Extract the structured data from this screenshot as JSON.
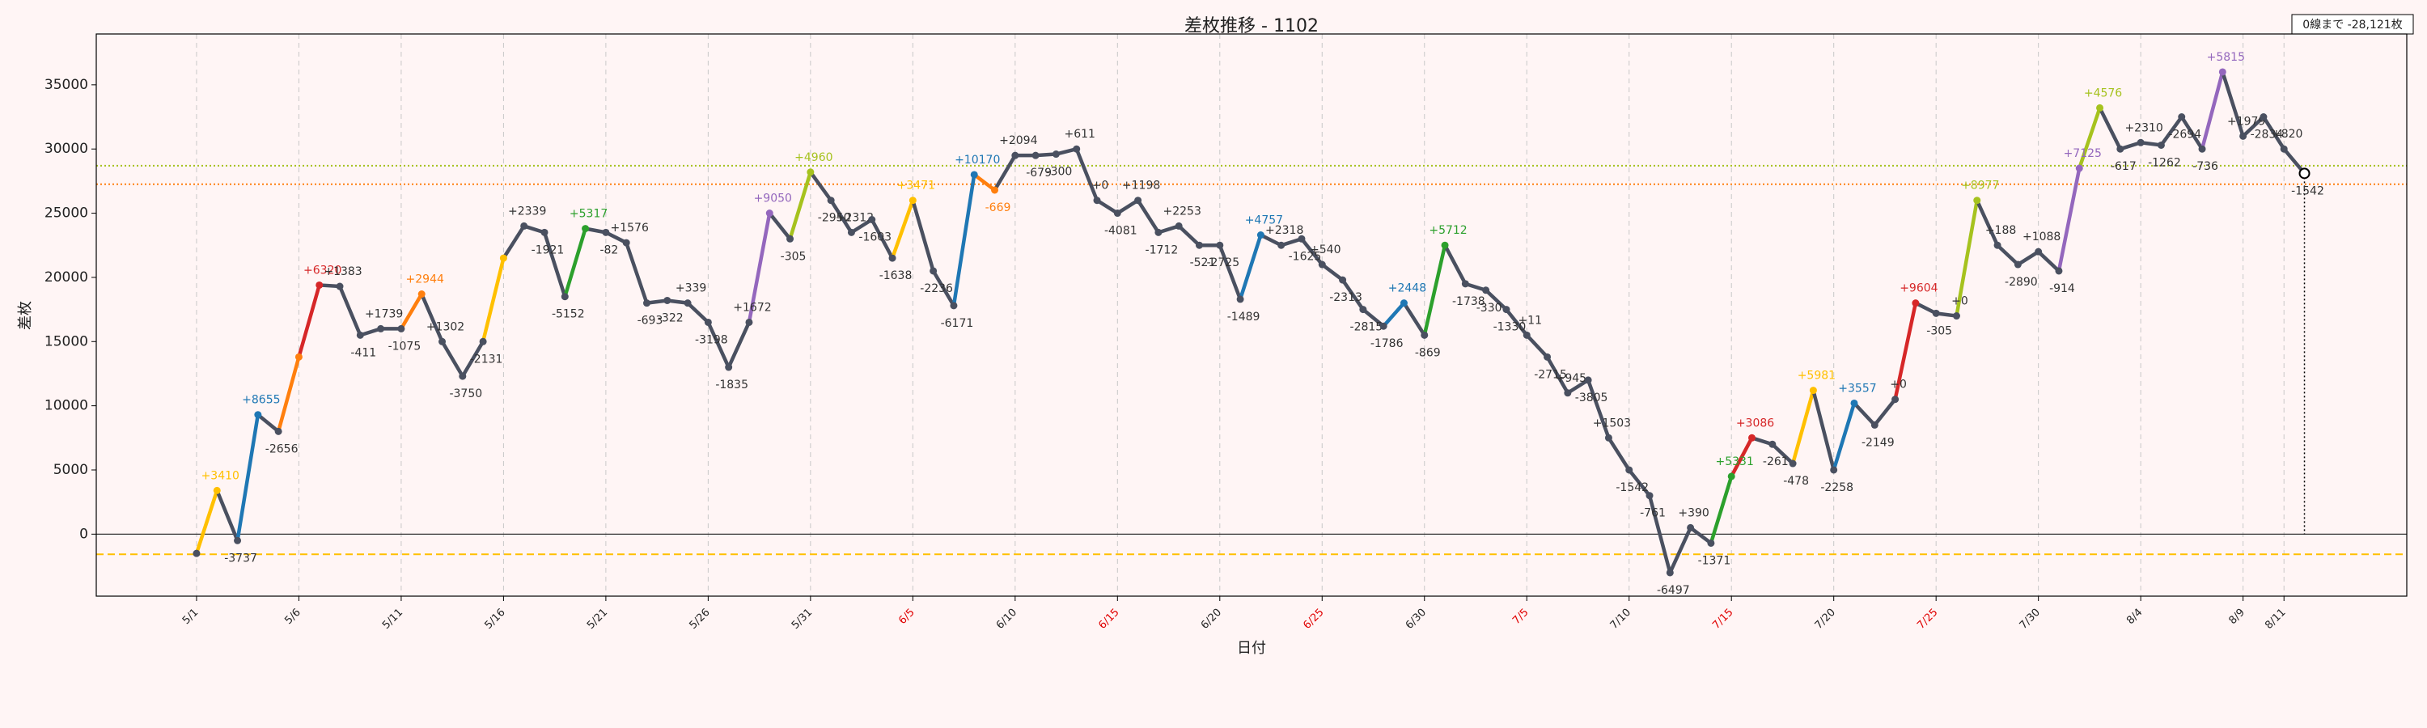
{
  "chart_data": {
    "type": "line",
    "title": "差枚推移 - 1102",
    "x_label": "日付",
    "y_label": "差枚",
    "annotation": "0線まで -28,121枚",
    "categories": [
      "5/1",
      null,
      null,
      null,
      null,
      "5/6",
      null,
      null,
      null,
      null,
      "5/11",
      null,
      null,
      null,
      null,
      "5/16",
      null,
      null,
      null,
      null,
      "5/21",
      null,
      null,
      null,
      null,
      "5/26",
      null,
      null,
      null,
      null,
      "5/31",
      null,
      null,
      null,
      null,
      "6/5",
      null,
      null,
      null,
      null,
      "6/10",
      null,
      null,
      null,
      null,
      "6/15",
      null,
      null,
      null,
      null,
      "6/20",
      null,
      null,
      null,
      null,
      "6/25",
      null,
      null,
      null,
      null,
      "6/30",
      null,
      null,
      null,
      null,
      "7/5",
      null,
      null,
      null,
      null,
      "7/10",
      null,
      null,
      null,
      null,
      "7/15",
      null,
      null,
      null,
      null,
      "7/20",
      null,
      null,
      null,
      null,
      "7/25",
      null,
      null,
      null,
      null,
      "7/30",
      null,
      null,
      null,
      null,
      "8/4",
      null,
      null,
      null,
      null,
      "8/9",
      null,
      "8/11",
      null
    ],
    "category_colors": [
      null,
      null,
      null,
      null,
      null,
      null,
      null,
      null,
      null,
      null,
      null,
      null,
      null,
      null,
      null,
      null,
      null,
      null,
      null,
      null,
      null,
      null,
      null,
      null,
      null,
      null,
      null,
      null,
      null,
      null,
      null,
      null,
      null,
      null,
      null,
      "#e00000",
      null,
      null,
      null,
      null,
      null,
      null,
      null,
      null,
      null,
      "#e00000",
      null,
      null,
      null,
      null,
      null,
      null,
      null,
      null,
      null,
      "#e00000",
      null,
      null,
      null,
      null,
      null,
      null,
      null,
      null,
      null,
      "#e00000",
      null,
      null,
      null,
      null,
      null,
      null,
      null,
      null,
      null,
      "#e00000",
      null,
      null,
      null,
      null,
      null,
      null,
      null,
      null,
      null,
      "#e00000",
      null,
      null,
      null,
      null,
      null,
      null,
      null,
      null,
      null,
      null,
      null,
      null,
      null,
      null,
      null,
      null,
      null,
      null
    ],
    "values": [
      -1500,
      3400,
      -500,
      9300,
      8000,
      13800,
      19400,
      19300,
      15500,
      16000,
      16000,
      18700,
      15000,
      12300,
      15000,
      21500,
      24000,
      23500,
      18500,
      23800,
      23500,
      22700,
      18000,
      18200,
      18000,
      16500,
      13000,
      16500,
      25000,
      23000,
      28200,
      26000,
      23500,
      24500,
      21500,
      26000,
      20500,
      17800,
      28000,
      26800,
      29500,
      29500,
      29600,
      30000,
      26000,
      25000,
      26000,
      23500,
      24000,
      22500,
      22500,
      18300,
      23300,
      22500,
      23000,
      21000,
      19800,
      17500,
      16200,
      18000,
      15500,
      22500,
      19500,
      19000,
      17500,
      15500,
      13800,
      11000,
      12000,
      7500,
      5000,
      3000,
      -3000,
      500,
      -700,
      4500,
      7500,
      7000,
      5500,
      11200,
      5000,
      10200,
      8500,
      10500,
      18000,
      17200,
      17000,
      26000,
      22500,
      21000,
      22000,
      20500,
      28500,
      33200,
      30000,
      30500,
      30300,
      32500,
      30000,
      36000,
      31000,
      32500,
      30000,
      28100
    ],
    "segment_colors": [
      null,
      "#ffc000",
      null,
      "#1f77b4",
      null,
      "#ff7f0e",
      "#d62728",
      null,
      null,
      null,
      null,
      "#ff7f0e",
      null,
      null,
      null,
      "#ffc000",
      null,
      null,
      null,
      "#2ca02c",
      null,
      null,
      null,
      null,
      null,
      null,
      null,
      null,
      "#9467bd",
      null,
      "#a6c21e",
      null,
      null,
      null,
      null,
      "#ffc000",
      null,
      null,
      "#1f77b4",
      "#ff7f0e",
      null,
      null,
      null,
      null,
      null,
      null,
      null,
      null,
      null,
      null,
      null,
      null,
      "#1f77b4",
      null,
      null,
      null,
      null,
      null,
      null,
      "#1f77b4",
      null,
      "#2ca02c",
      null,
      null,
      null,
      null,
      null,
      null,
      null,
      null,
      null,
      null,
      null,
      null,
      null,
      "#2ca02c",
      "#d62728",
      null,
      null,
      "#ffc000",
      null,
      "#1f77b4",
      null,
      null,
      "#d62728",
      null,
      null,
      "#a6c21e",
      null,
      null,
      null,
      null,
      "#9467bd",
      "#a6c21e",
      null,
      null,
      null,
      null,
      null,
      "#9467bd",
      null,
      null,
      null,
      null
    ],
    "delta_labels": [
      null,
      "+3410",
      "-3737",
      "+8655",
      "-2656",
      null,
      "+6320",
      "+1383",
      "-411",
      "+1739",
      "-1075",
      "+2944",
      "+1302",
      "-3750",
      "-2131",
      null,
      "+2339",
      "-1921",
      "-5152",
      "+5317",
      "-82",
      "+1576",
      "-693",
      "-322",
      "+339",
      "-3198",
      "-1835",
      "+1672",
      "+9050",
      "-305",
      "+4960",
      "-2950",
      "+2312",
      "-1603",
      "-1638",
      "+3471",
      "-2236",
      "-6171",
      "+10170",
      "-669",
      "+2094",
      "-679",
      "-300",
      "+611",
      "+0",
      "-4081",
      "+1198",
      "-1712",
      "+2253",
      "-521",
      "-2725",
      "-1489",
      "+4757",
      "+2318",
      "-1625",
      "+540",
      "-2313",
      "-2815",
      "-1786",
      "+2448",
      "-869",
      "+5712",
      "-1738",
      "-330",
      "-1330",
      "+11",
      "-2715",
      "+945",
      "-3805",
      "+1503",
      "-1542",
      "-761",
      "-6497",
      "+390",
      "-1371",
      "+5331",
      "+3086",
      "-261",
      "-478",
      "+5981",
      "-2258",
      "+3557",
      "-2149",
      "+0",
      "+9604",
      "-305",
      "+0",
      "+8977",
      "+188",
      "-2890",
      "+1088",
      "-914",
      "+7125",
      "+4576",
      "-617",
      "+2310",
      "-1262",
      "-2694",
      "-736",
      "+5815",
      "+1979",
      "-2834",
      "+820",
      "-1542"
    ],
    "line_color": "#4a5060",
    "xlim": [
      -4.9,
      108
    ],
    "ylim": [
      -4830,
      38960
    ],
    "yticks": [
      0,
      5000,
      10000,
      15000,
      20000,
      25000,
      30000,
      35000
    ],
    "reference_lines": [
      {
        "value": 28700,
        "color": "#a6c21e",
        "style": "dotted"
      },
      {
        "value": 27260,
        "color": "#ff7f0e",
        "style": "dotted"
      },
      {
        "value": -1570,
        "color": "#ffc000",
        "style": "dashed"
      }
    ],
    "grid": true
  }
}
